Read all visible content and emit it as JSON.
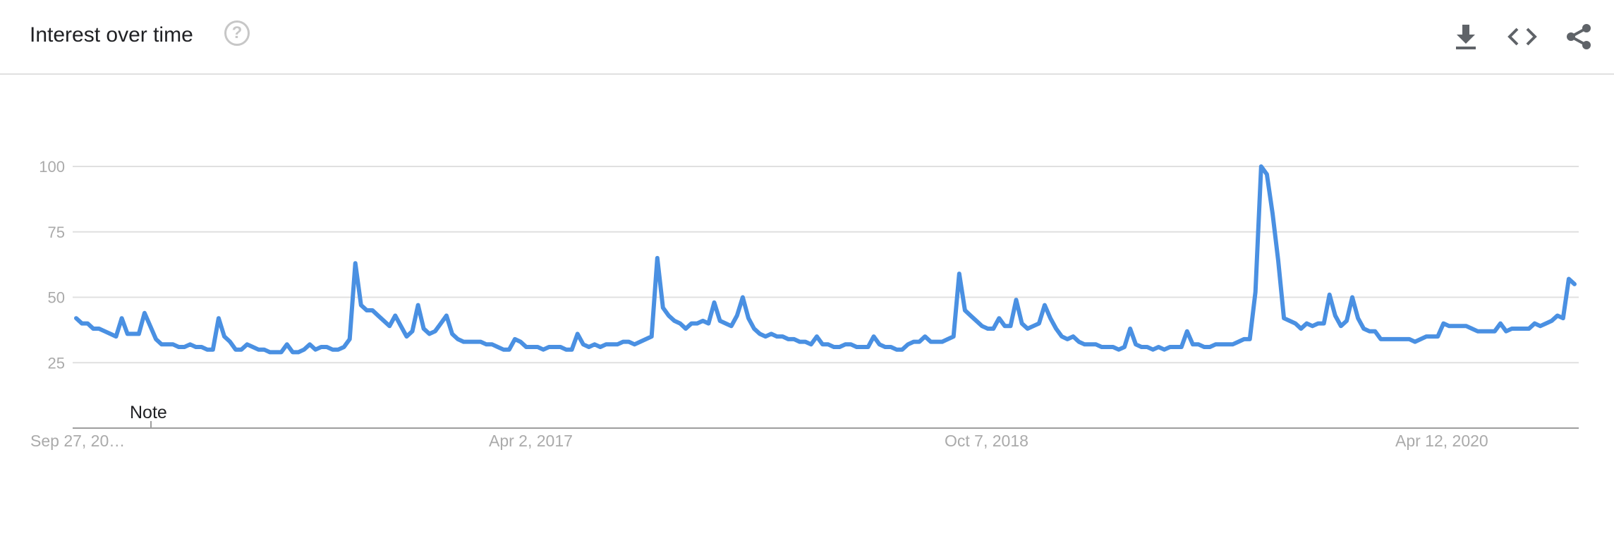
{
  "header": {
    "title": "Interest over time",
    "help_glyph": "?",
    "icons": [
      "help-icon",
      "download-icon",
      "embed-code-icon",
      "share-icon"
    ]
  },
  "colors": {
    "line": "#4a90e2",
    "grid": "#e0e0e0",
    "axis": "#9e9e9e",
    "tick_text": "#aaaaaa"
  },
  "chart_data": {
    "type": "line",
    "title": "",
    "xlabel": "",
    "ylabel": "",
    "ylim": [
      0,
      100
    ],
    "yticks": [
      25,
      50,
      75,
      100
    ],
    "ytick_labels": [
      "25",
      "50",
      "75",
      "100"
    ],
    "grid": true,
    "x_start": "Sep 27, 2015",
    "x_end": "Sep 20, 2020",
    "x_interval": "weekly",
    "xtick_labels": [
      "Sep 27, 20…",
      "Apr 2, 2017",
      "Oct 7, 2018",
      "Apr 12, 2020"
    ],
    "annotation": "Note",
    "series": [
      {
        "values": [
          42,
          40,
          40,
          38,
          38,
          37,
          36,
          35,
          42,
          36,
          36,
          36,
          44,
          39,
          34,
          32,
          32,
          32,
          31,
          31,
          32,
          31,
          31,
          30,
          30,
          42,
          35,
          33,
          30,
          30,
          32,
          31,
          30,
          30,
          29,
          29,
          29,
          32,
          29,
          29,
          30,
          32,
          30,
          31,
          31,
          30,
          30,
          31,
          34,
          63,
          47,
          45,
          45,
          43,
          41,
          39,
          43,
          39,
          35,
          37,
          47,
          38,
          36,
          37,
          40,
          43,
          36,
          34,
          33,
          33,
          33,
          33,
          32,
          32,
          31,
          30,
          30,
          34,
          33,
          31,
          31,
          31,
          30,
          31,
          31,
          31,
          30,
          30,
          36,
          32,
          31,
          32,
          31,
          32,
          32,
          32,
          33,
          33,
          32,
          33,
          34,
          35,
          65,
          46,
          43,
          41,
          40,
          38,
          40,
          40,
          41,
          40,
          48,
          41,
          40,
          39,
          43,
          50,
          42,
          38,
          36,
          35,
          36,
          35,
          35,
          34,
          34,
          33,
          33,
          32,
          35,
          32,
          32,
          31,
          31,
          32,
          32,
          31,
          31,
          31,
          35,
          32,
          31,
          31,
          30,
          30,
          32,
          33,
          33,
          35,
          33,
          33,
          33,
          34,
          35,
          59,
          45,
          43,
          41,
          39,
          38,
          38,
          42,
          39,
          39,
          49,
          40,
          38,
          39,
          40,
          47,
          42,
          38,
          35,
          34,
          35,
          33,
          32,
          32,
          32,
          31,
          31,
          31,
          30,
          31,
          38,
          32,
          31,
          31,
          30,
          31,
          30,
          31,
          31,
          31,
          37,
          32,
          32,
          31,
          31,
          32,
          32,
          32,
          32,
          33,
          34,
          34,
          52,
          100,
          97,
          82,
          64,
          42,
          41,
          40,
          38,
          40,
          39,
          40,
          40,
          51,
          43,
          39,
          41,
          50,
          42,
          38,
          37,
          37,
          34,
          34,
          34,
          34,
          34,
          34,
          33,
          34,
          35,
          35,
          35,
          40,
          39,
          39,
          39,
          39,
          38,
          37,
          37,
          37,
          37,
          40,
          37,
          38,
          38,
          38,
          38,
          40,
          39,
          40,
          41,
          43,
          42,
          57,
          55
        ]
      }
    ]
  }
}
